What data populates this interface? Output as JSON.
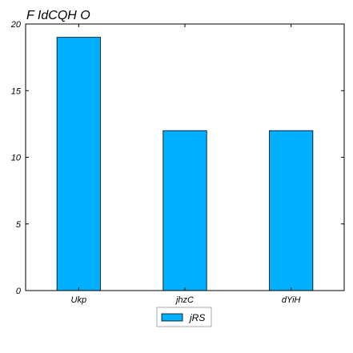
{
  "chart_data": {
    "type": "bar",
    "title": "F IdCQH O",
    "xlabel": "",
    "ylabel": "",
    "categories": [
      "Ukp",
      "jhzC",
      "dYiH"
    ],
    "series": [
      {
        "name": "jRS",
        "values": [
          19,
          12,
          12
        ],
        "color": "#00b0ff"
      }
    ],
    "ylim": [
      0,
      20
    ],
    "yticks": [
      0,
      5,
      10,
      15,
      20
    ],
    "grid": false,
    "legend": "bottom-center"
  }
}
